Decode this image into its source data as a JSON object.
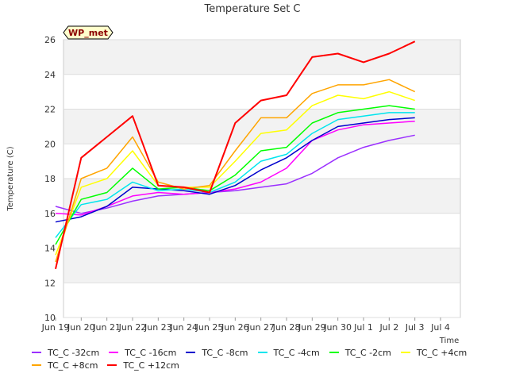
{
  "chart_data": {
    "type": "line",
    "title": "Temperature Set C",
    "xlabel": "Time",
    "ylabel": "Temperature (C)",
    "badge": "WP_met",
    "ylim": [
      10,
      26
    ],
    "yticks": [
      10,
      12,
      14,
      16,
      18,
      20,
      22,
      24,
      26
    ],
    "xlim": [
      "2023-06-19",
      "2023-07-04"
    ],
    "xtick_labels": [
      "Jun 19",
      "Jun 20",
      "Jun 21",
      "Jun 22",
      "Jun 23",
      "Jun 24",
      "Jun 25",
      "Jun 26",
      "Jun 27",
      "Jun 28",
      "Jun 29",
      "Jun 30",
      "Jul 1",
      "Jul 2",
      "Jul 3",
      "Jul 4"
    ],
    "x": [
      "Jun 19",
      "Jun 20",
      "Jun 21",
      "Jun 22",
      "Jun 23",
      "Jun 24",
      "Jun 25",
      "Jun 26",
      "Jun 27",
      "Jun 28",
      "Jun 29",
      "Jun 30",
      "Jul 1",
      "Jul 2",
      "Jul 3"
    ],
    "grid": "horizontal bands",
    "legend_position": "bottom",
    "series": [
      {
        "name": "TC_C -32cm",
        "color": "#9b30ff",
        "values": [
          16.4,
          16.0,
          16.3,
          16.7,
          17.0,
          17.1,
          17.2,
          17.3,
          17.5,
          17.7,
          18.3,
          19.2,
          19.8,
          20.2,
          20.5
        ]
      },
      {
        "name": "TC_C -16cm",
        "color": "#ff00ff",
        "values": [
          16.0,
          15.9,
          16.4,
          17.0,
          17.2,
          17.1,
          17.2,
          17.4,
          17.8,
          18.6,
          20.2,
          20.8,
          21.1,
          21.2,
          21.3
        ]
      },
      {
        "name": "TC_C -8cm",
        "color": "#0000cd",
        "values": [
          15.5,
          15.8,
          16.4,
          17.5,
          17.4,
          17.3,
          17.1,
          17.6,
          18.5,
          19.2,
          20.2,
          21.0,
          21.2,
          21.4,
          21.5
        ]
      },
      {
        "name": "TC_C -4cm",
        "color": "#00e5ee",
        "values": [
          14.6,
          16.5,
          16.8,
          17.8,
          17.3,
          17.4,
          17.2,
          17.8,
          19.0,
          19.4,
          20.6,
          21.4,
          21.6,
          21.8,
          21.8
        ]
      },
      {
        "name": "TC_C -2cm",
        "color": "#00ff00",
        "values": [
          14.2,
          16.8,
          17.2,
          18.6,
          17.4,
          17.5,
          17.3,
          18.2,
          19.6,
          19.8,
          21.2,
          21.8,
          22.0,
          22.2,
          22.0
        ]
      },
      {
        "name": "TC_C +4cm",
        "color": "#ffff00",
        "values": [
          13.6,
          17.5,
          18.0,
          19.6,
          17.6,
          17.5,
          17.5,
          19.0,
          20.6,
          20.8,
          22.2,
          22.8,
          22.6,
          23.0,
          22.5
        ]
      },
      {
        "name": "TC_C +8cm",
        "color": "#ffa500",
        "values": [
          13.2,
          18.0,
          18.6,
          20.4,
          17.8,
          17.4,
          17.6,
          19.6,
          21.5,
          21.5,
          22.9,
          23.4,
          23.4,
          23.7,
          23.0
        ]
      },
      {
        "name": "TC_C +12cm",
        "color": "#ff0000",
        "values": [
          12.8,
          19.2,
          20.4,
          21.6,
          17.6,
          17.5,
          17.2,
          21.2,
          22.5,
          22.8,
          25.0,
          25.2,
          24.7,
          25.2,
          25.9
        ]
      }
    ]
  }
}
